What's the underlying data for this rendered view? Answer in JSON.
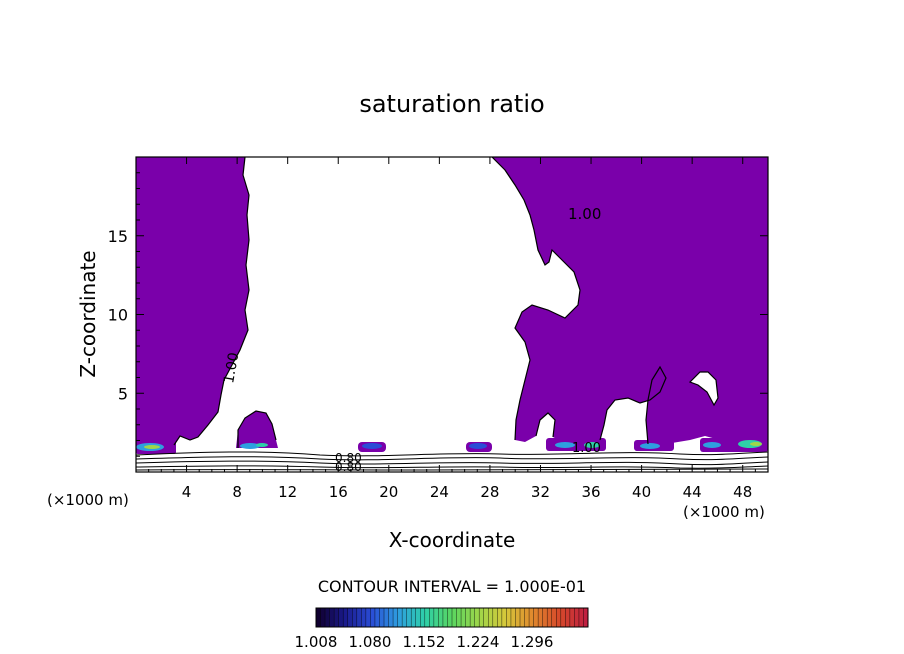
{
  "chart_data": {
    "type": "contour",
    "title": "saturation ratio",
    "xlabel": "X-coordinate",
    "ylabel": "Z-coordinate",
    "x_unit_left": "(×1000 m)",
    "x_unit_right": "(×1000 m)",
    "xlim": [
      0,
      50
    ],
    "ylim": [
      0,
      20
    ],
    "x_ticks": [
      "4",
      "8",
      "12",
      "16",
      "20",
      "24",
      "28",
      "32",
      "36",
      "40",
      "44",
      "48"
    ],
    "y_ticks": [
      "5",
      "10",
      "15"
    ],
    "contour_labels": [
      "1.00",
      "1.00",
      "1.00",
      "0.80",
      "0.80"
    ],
    "contour_interval_text": "CONTOUR INTERVAL = 1.000E-01",
    "colorbar": {
      "tick_labels": [
        "1.008",
        "1.080",
        "1.152",
        "1.224",
        "1.296"
      ],
      "colors": [
        "#100030",
        "#1a1a8c",
        "#2a4dd6",
        "#2e9fdf",
        "#2ed0a8",
        "#5ad660",
        "#9ed64a",
        "#d6c83a",
        "#e08a2e",
        "#d64a2a",
        "#c02040"
      ]
    },
    "fill_color": "#7a00aa",
    "grid": false,
    "legend": "colorbar-bottom"
  }
}
